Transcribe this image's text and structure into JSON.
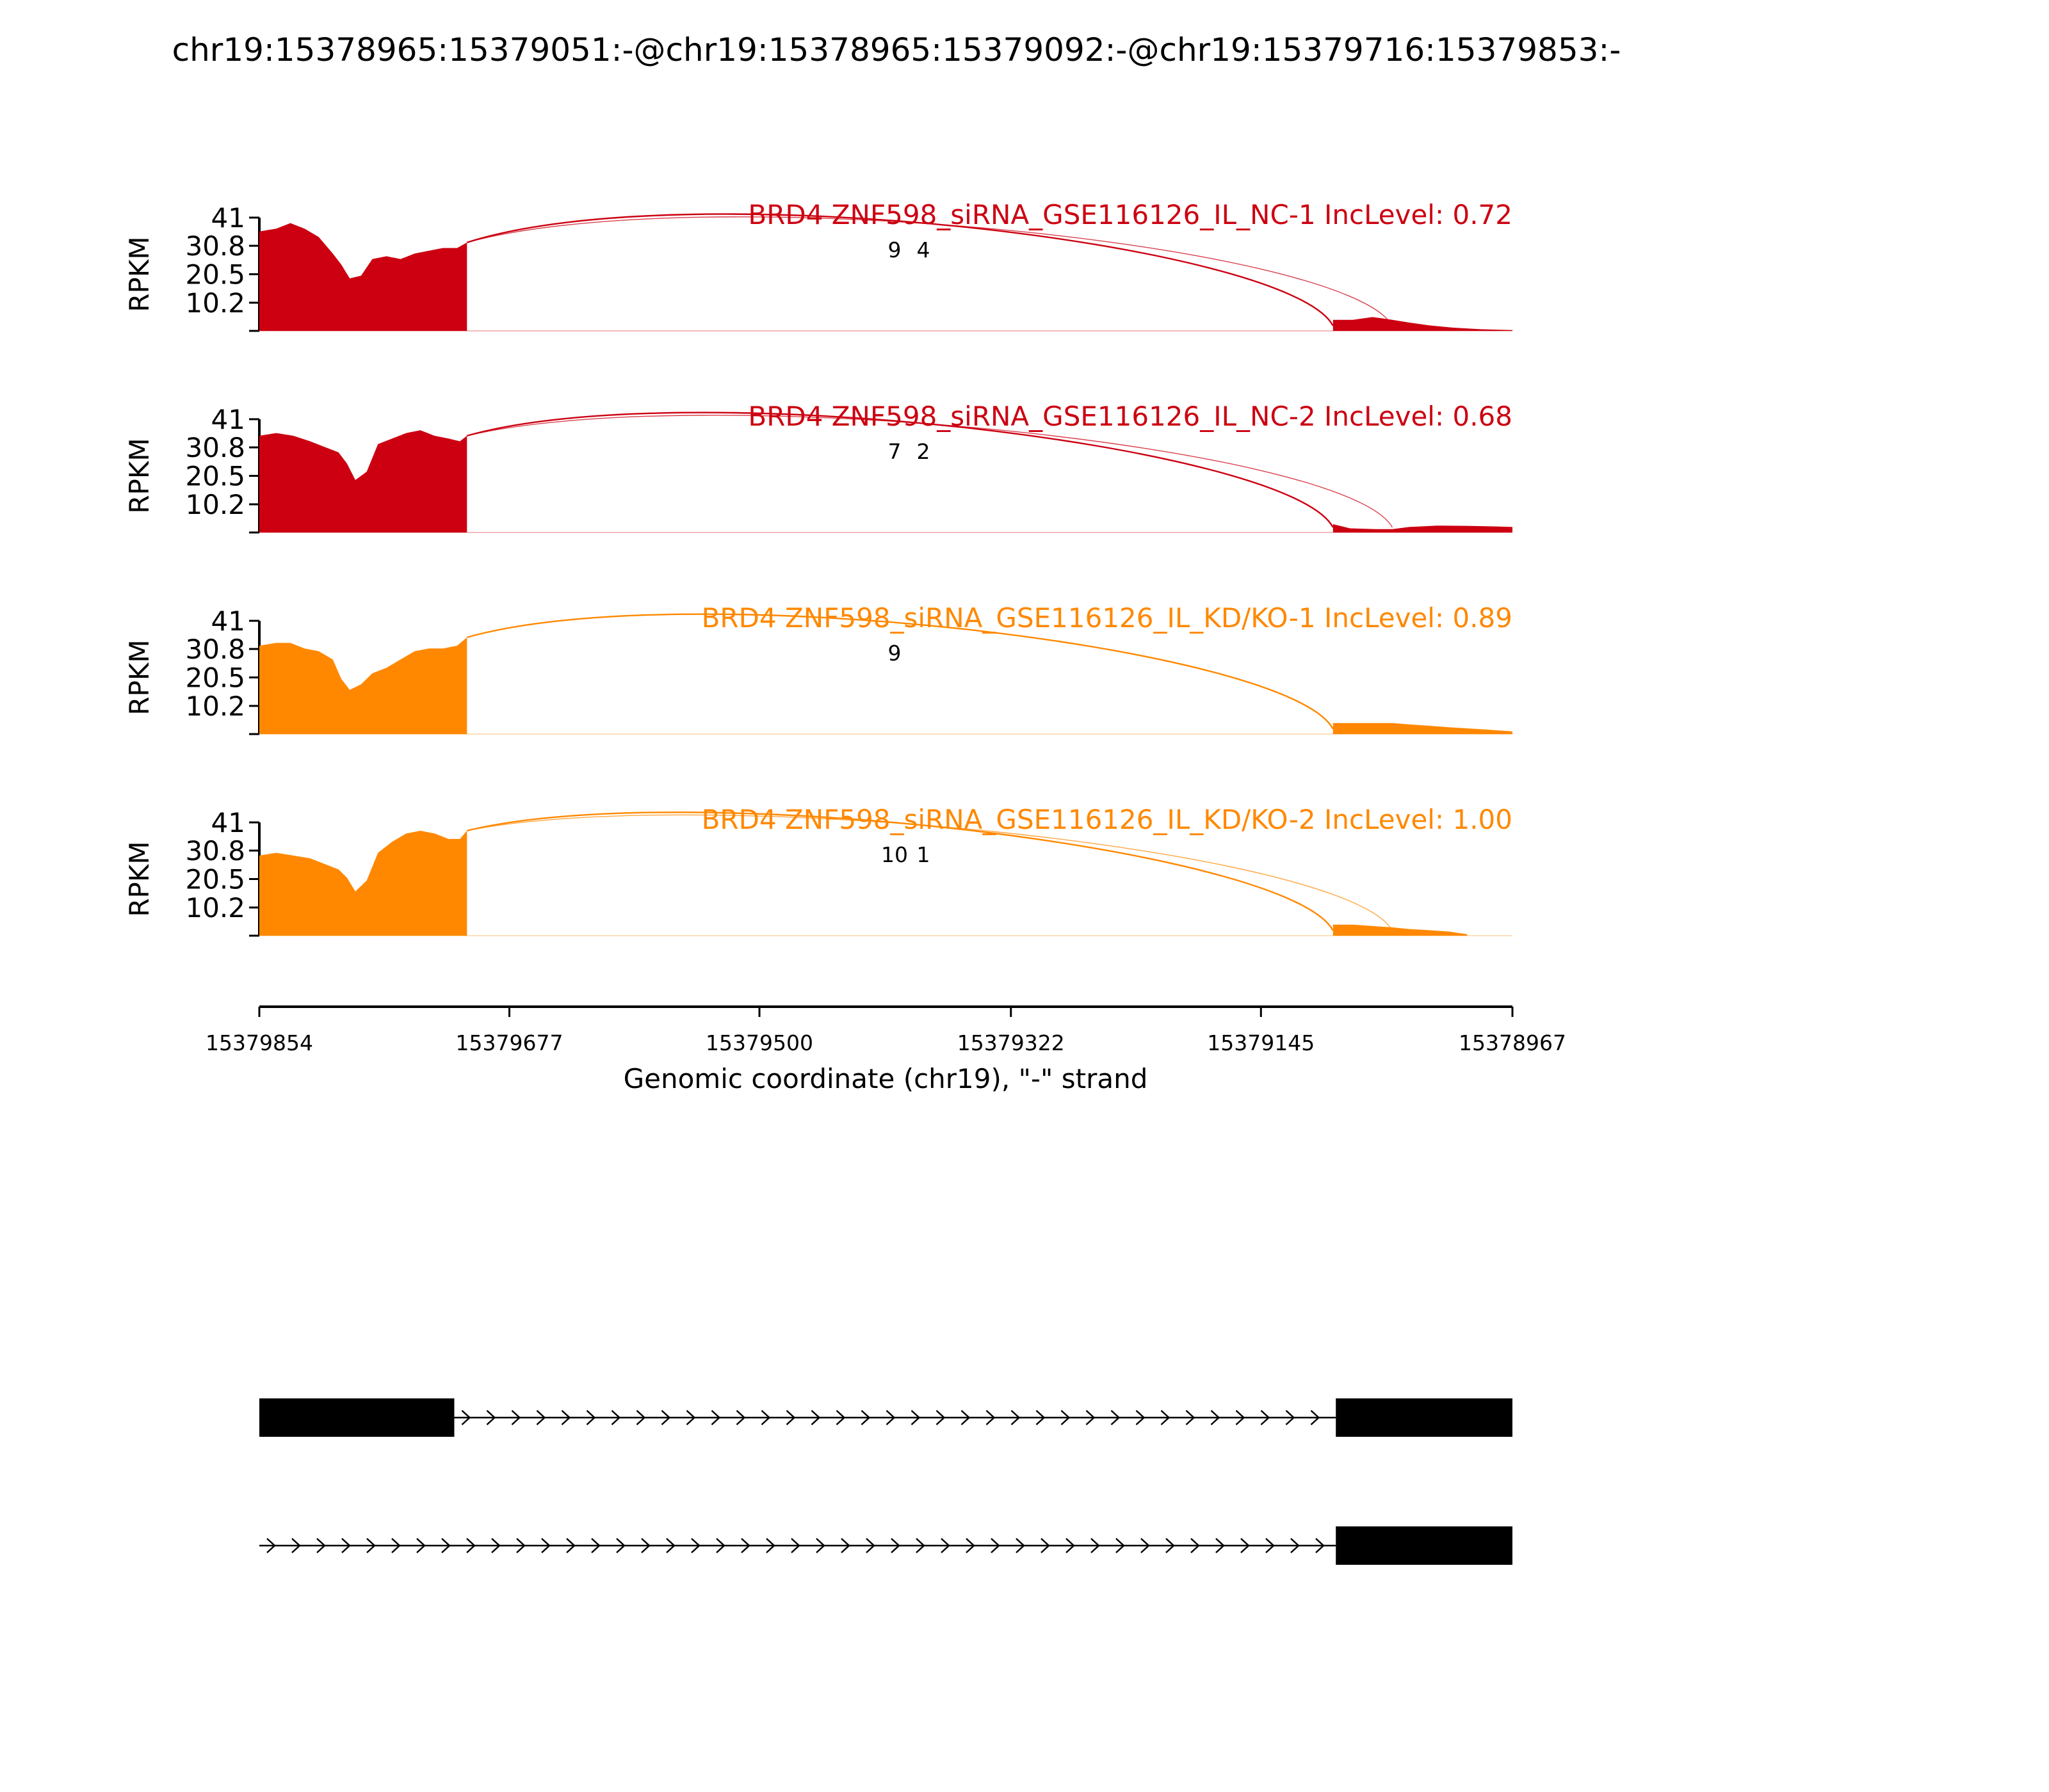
{
  "title": "chr19:15378965:15379051:-@chr19:15378965:15379092:-@chr19:15379716:15379853:-",
  "colors": {
    "nc": "#cc0011",
    "kd": "#ff8800",
    "axis": "#000000"
  },
  "chart_data": {
    "type": "area",
    "title": "chr19:15378965:15379051:-@chr19:15378965:15379092:-@chr19:15379716:15379853:-",
    "xlabel": "Genomic coordinate (chr19), \"-\" strand",
    "ylabel": "RPKM",
    "ylim": [
      0,
      41
    ],
    "yticks": [
      "41",
      "30.8",
      "20.5",
      "10.2"
    ],
    "xlim": [
      15379854,
      15378967
    ],
    "xticks": [
      "15379854",
      "15379677",
      "15379500",
      "15379322",
      "15379145",
      "15378967"
    ],
    "grid": false,
    "series": [
      {
        "name": "BRD4 ZNF598_siRNA_GSE116126_IL_NC-1 IncLevel: 0.72",
        "color": "#cc0011",
        "coverage": [
          [
            15379854,
            36
          ],
          [
            15379842,
            37
          ],
          [
            15379832,
            39
          ],
          [
            15379822,
            37
          ],
          [
            15379812,
            34
          ],
          [
            15379802,
            28
          ],
          [
            15379796,
            24
          ],
          [
            15379790,
            19
          ],
          [
            15379782,
            20
          ],
          [
            15379774,
            26
          ],
          [
            15379764,
            27
          ],
          [
            15379754,
            26
          ],
          [
            15379744,
            28
          ],
          [
            15379734,
            29
          ],
          [
            15379724,
            30
          ],
          [
            15379714,
            30
          ],
          [
            15379707,
            32
          ]
        ],
        "coverage2": [
          [
            15379094,
            4
          ],
          [
            15379080,
            4
          ],
          [
            15379066,
            5
          ],
          [
            15379052,
            4
          ],
          [
            15379040,
            3
          ],
          [
            15379026,
            2
          ],
          [
            15379010,
            1.2
          ],
          [
            15378990,
            0.6
          ],
          [
            15378967,
            0.3
          ]
        ],
        "junctions": [
          {
            "from": 15379707,
            "to": 15379094,
            "count": "9"
          },
          {
            "from": 15379707,
            "to": 15379052,
            "count": "4"
          }
        ]
      },
      {
        "name": "BRD4 ZNF598_siRNA_GSE116126_IL_NC-2 IncLevel: 0.68",
        "color": "#cc0011",
        "coverage": [
          [
            15379854,
            35
          ],
          [
            15379842,
            36
          ],
          [
            15379830,
            35
          ],
          [
            15379818,
            33
          ],
          [
            15379808,
            31
          ],
          [
            15379798,
            29
          ],
          [
            15379792,
            25
          ],
          [
            15379786,
            19
          ],
          [
            15379778,
            22
          ],
          [
            15379770,
            32
          ],
          [
            15379760,
            34
          ],
          [
            15379750,
            36
          ],
          [
            15379740,
            37
          ],
          [
            15379730,
            35
          ],
          [
            15379720,
            34
          ],
          [
            15379712,
            33
          ],
          [
            15379707,
            35
          ]
        ],
        "coverage2": [
          [
            15379094,
            3
          ],
          [
            15379082,
            1.5
          ],
          [
            15379064,
            1.2
          ],
          [
            15379052,
            1.2
          ],
          [
            15379040,
            2
          ],
          [
            15379020,
            2.5
          ],
          [
            15379000,
            2.4
          ],
          [
            15378980,
            2.2
          ],
          [
            15378967,
            2
          ]
        ],
        "junctions": [
          {
            "from": 15379707,
            "to": 15379094,
            "count": "7"
          },
          {
            "from": 15379707,
            "to": 15379052,
            "count": "2"
          }
        ]
      },
      {
        "name": "BRD4 ZNF598_siRNA_GSE116126_IL_KD/KO-1 IncLevel: 0.89",
        "color": "#ff8800",
        "coverage": [
          [
            15379854,
            32
          ],
          [
            15379842,
            33
          ],
          [
            15379832,
            33
          ],
          [
            15379822,
            31
          ],
          [
            15379812,
            30
          ],
          [
            15379802,
            27
          ],
          [
            15379796,
            20
          ],
          [
            15379790,
            16
          ],
          [
            15379782,
            18
          ],
          [
            15379774,
            22
          ],
          [
            15379764,
            24
          ],
          [
            15379754,
            27
          ],
          [
            15379744,
            30
          ],
          [
            15379734,
            31
          ],
          [
            15379724,
            31
          ],
          [
            15379714,
            32
          ],
          [
            15379707,
            35
          ]
        ],
        "coverage2": [
          [
            15379094,
            4
          ],
          [
            15379080,
            4
          ],
          [
            15379066,
            4
          ],
          [
            15379052,
            4
          ],
          [
            15379040,
            3.5
          ],
          [
            15379026,
            3
          ],
          [
            15379010,
            2.4
          ],
          [
            15378990,
            1.8
          ],
          [
            15378967,
            1
          ]
        ],
        "junctions": [
          {
            "from": 15379707,
            "to": 15379094,
            "count": "9"
          }
        ]
      },
      {
        "name": "BRD4 ZNF598_siRNA_GSE116126_IL_KD/KO-2 IncLevel: 1.00",
        "color": "#ff8800",
        "coverage": [
          [
            15379854,
            29
          ],
          [
            15379842,
            30
          ],
          [
            15379830,
            29
          ],
          [
            15379818,
            28
          ],
          [
            15379808,
            26
          ],
          [
            15379798,
            24
          ],
          [
            15379792,
            21
          ],
          [
            15379786,
            16
          ],
          [
            15379778,
            20
          ],
          [
            15379770,
            30
          ],
          [
            15379760,
            34
          ],
          [
            15379750,
            37
          ],
          [
            15379740,
            38
          ],
          [
            15379730,
            37
          ],
          [
            15379720,
            35
          ],
          [
            15379712,
            35
          ],
          [
            15379707,
            38
          ]
        ],
        "coverage2": [
          [
            15379094,
            4
          ],
          [
            15379080,
            4
          ],
          [
            15379066,
            3.5
          ],
          [
            15379052,
            3
          ],
          [
            15379040,
            2.4
          ],
          [
            15379026,
            2
          ],
          [
            15379012,
            1.5
          ],
          [
            15378999,
            0.5
          ]
        ],
        "junctions": [
          {
            "from": 15379707,
            "to": 15379094,
            "count": "10"
          },
          {
            "from": 15379707,
            "to": 15379052,
            "count": "1"
          }
        ]
      }
    ],
    "gene_models": [
      {
        "exons": [
          [
            15379854,
            15379716
          ],
          [
            15379092,
            15378967
          ]
        ],
        "intron": [
          15379716,
          15379092
        ]
      },
      {
        "exons": [
          [
            15379092,
            15378967
          ]
        ],
        "intron": [
          15379854,
          15379092
        ]
      }
    ]
  }
}
